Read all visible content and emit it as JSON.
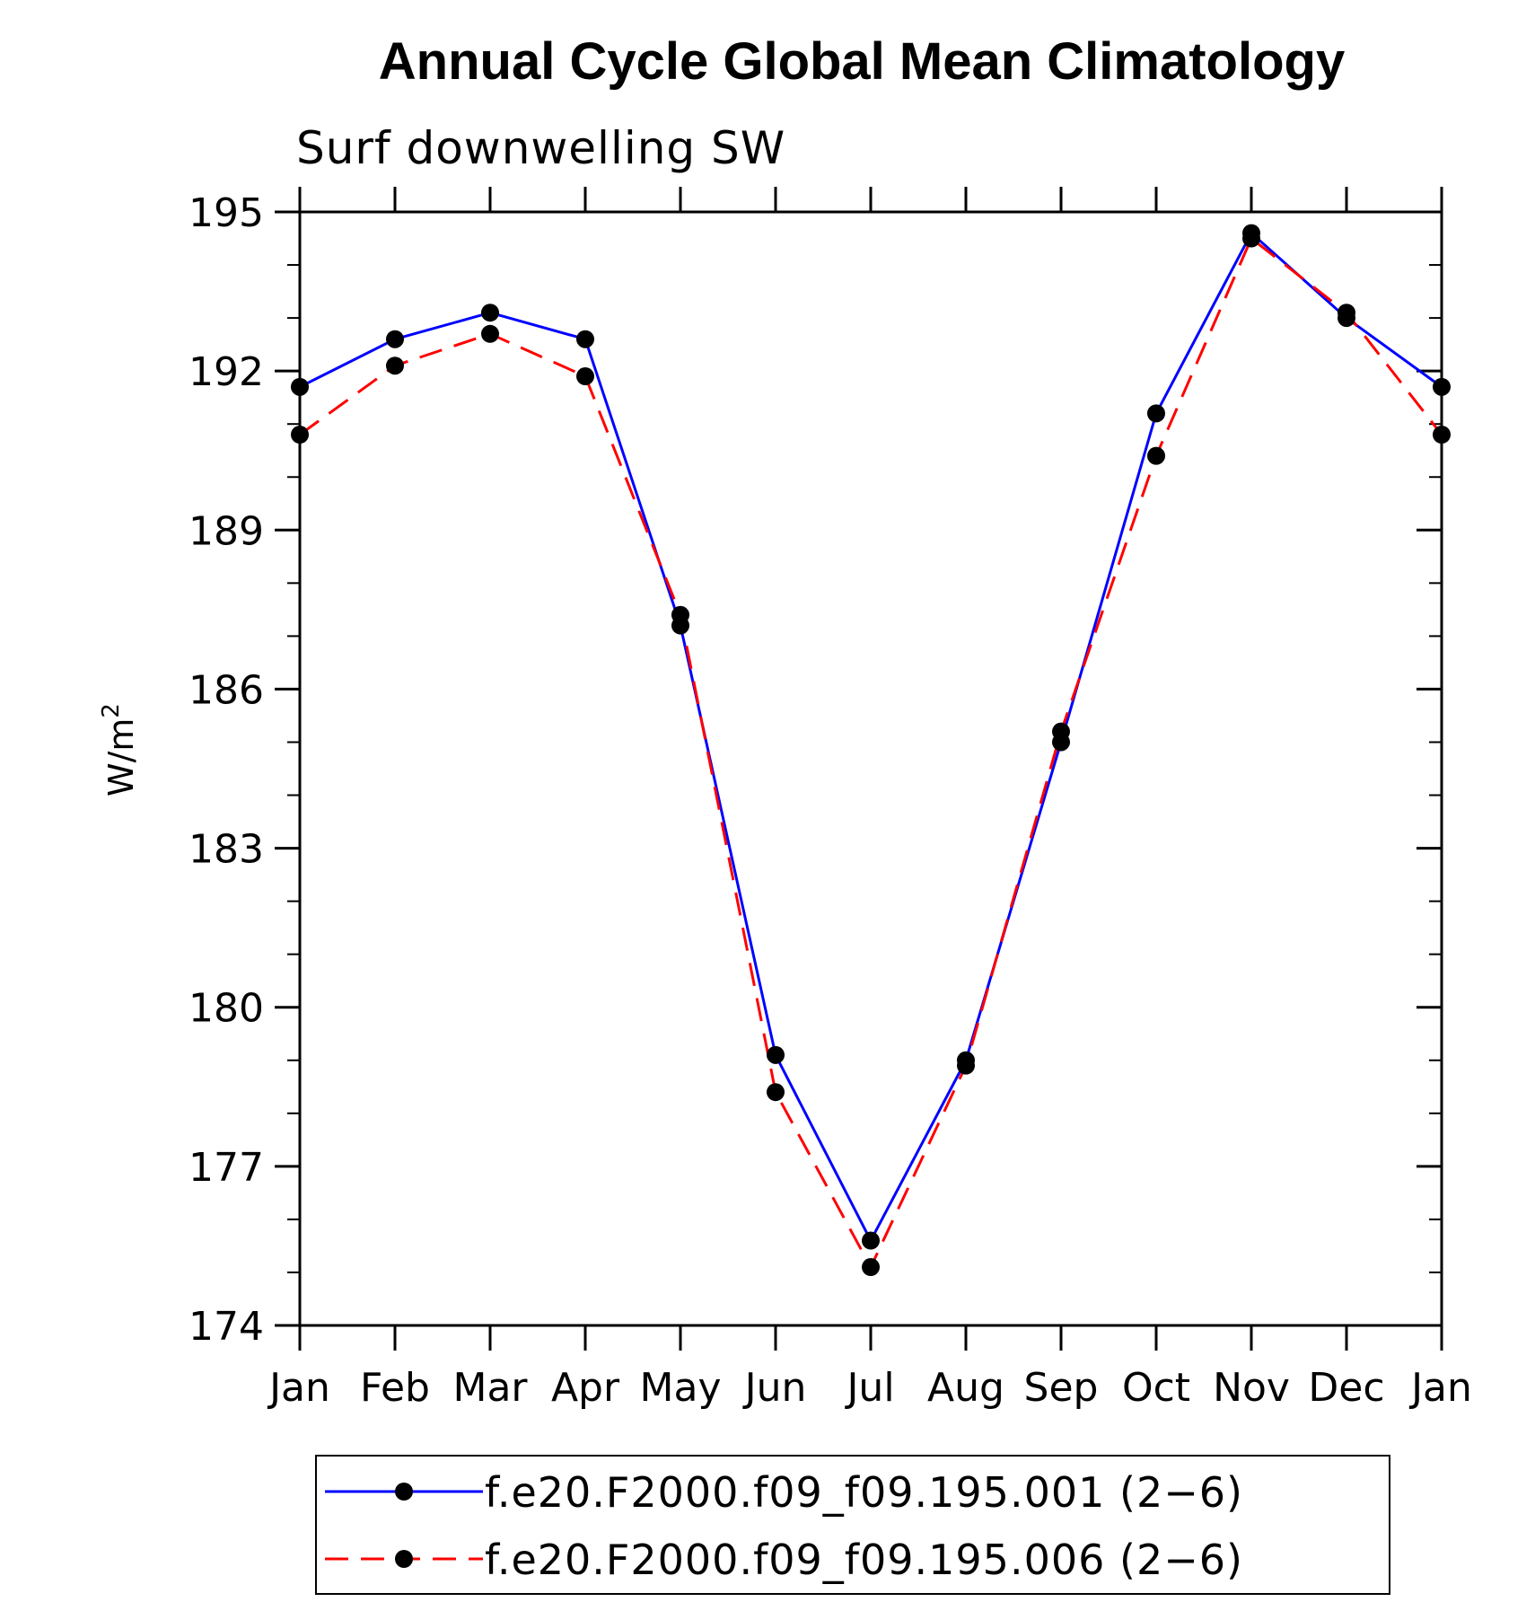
{
  "chart_data": {
    "type": "line",
    "title": "Annual Cycle Global Mean Climatology",
    "subtitle": "Surf downwelling SW",
    "ylabel": "W/m",
    "ylabel_sup": "2",
    "xlabel": "",
    "categories": [
      "Jan",
      "Feb",
      "Mar",
      "Apr",
      "May",
      "Jun",
      "Jul",
      "Aug",
      "Sep",
      "Oct",
      "Nov",
      "Dec",
      "Jan"
    ],
    "ylim": [
      174,
      195
    ],
    "yticks": [
      174,
      177,
      180,
      183,
      186,
      189,
      192,
      195
    ],
    "series": [
      {
        "name": "f.e20.F2000.f09_f09.195.001 (2−6)",
        "color": "#0000ff",
        "style": "solid",
        "marker": "filled-circle",
        "values": [
          191.7,
          192.6,
          193.1,
          192.6,
          187.2,
          179.1,
          175.6,
          179.0,
          185.0,
          191.2,
          194.6,
          193.0,
          191.7
        ]
      },
      {
        "name": "f.e20.F2000.f09_f09.195.006 (2−6)",
        "color": "#ff0000",
        "style": "dashed",
        "marker": "filled-circle",
        "values": [
          190.8,
          192.1,
          192.7,
          191.9,
          187.4,
          178.4,
          175.1,
          178.9,
          185.2,
          190.4,
          194.5,
          193.1,
          190.8
        ]
      }
    ],
    "grid": false,
    "legend_position": "bottom"
  }
}
